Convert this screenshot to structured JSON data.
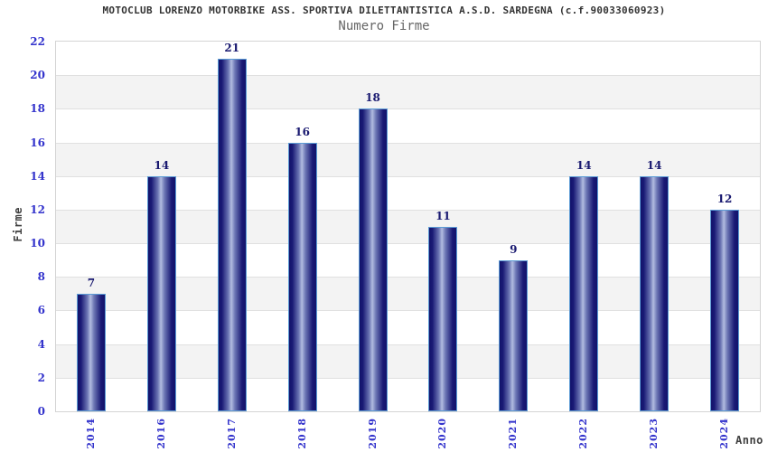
{
  "header": {
    "title": "MOTOCLUB LORENZO MOTORBIKE ASS. SPORTIVA DILETTANTISTICA A.S.D. SARDEGNA (c.f.90033060923)",
    "subtitle": "Numero Firme"
  },
  "chart_data": {
    "type": "bar",
    "title": "MOTOCLUB LORENZO MOTORBIKE ASS. SPORTIVA DILETTANTISTICA A.S.D. SARDEGNA (c.f.90033060923)",
    "subtitle": "Numero Firme",
    "categories": [
      "2014",
      "2016",
      "2017",
      "2018",
      "2019",
      "2020",
      "2021",
      "2022",
      "2023",
      "2024"
    ],
    "values": [
      7,
      14,
      21,
      16,
      18,
      11,
      9,
      14,
      14,
      12
    ],
    "xlabel": "Anno",
    "ylabel": "Firme",
    "ylim": [
      0,
      22
    ],
    "ytick_step": 2,
    "legend": "none",
    "grid": "horizontal-bands-alternating",
    "colors": {
      "title": "#333333",
      "subtitle": "#666666",
      "tick_label": "#3333cc",
      "value_label": "#191970",
      "axis_title": "#404040",
      "bar_dark": "#12126b",
      "bar_mid": "#6d77b5",
      "bar_highlight": "#b2bce0",
      "bar_border": "#5b9bd5",
      "band_gray": "#f3f3f3",
      "band_white": "#ffffff",
      "grid_line": "#e0e0e0",
      "plot_border": "#d4d4d4"
    }
  }
}
